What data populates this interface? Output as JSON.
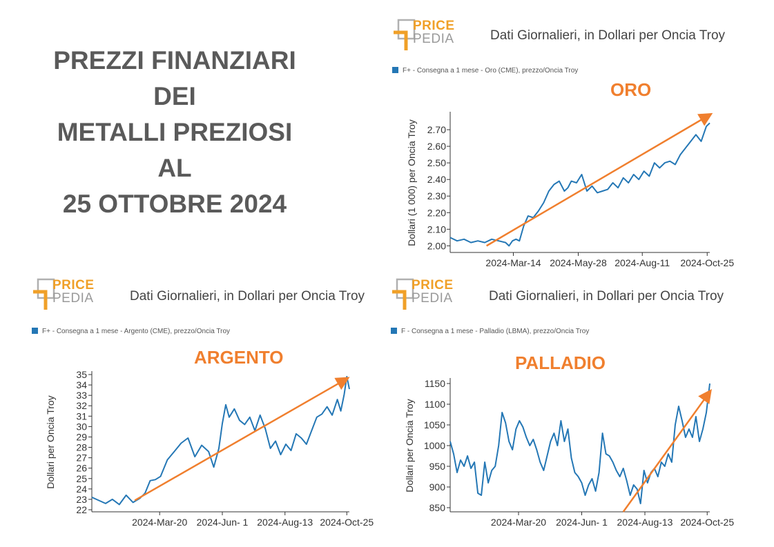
{
  "title_lines": [
    "PREZZI FINANZIARI",
    "DEI",
    "METALLI PREZIOSI",
    "AL",
    "25 OTTOBRE 2024"
  ],
  "logo": {
    "word1": "PRICE",
    "word2": "PEDIA"
  },
  "colors": {
    "series": "#2477b5",
    "arrow": "#f07f2e",
    "title": "#5a5a5a",
    "logo_accent": "#f0a028"
  },
  "chart_data": [
    {
      "type": "line",
      "title": "ORO",
      "subtitle": "Dati Giornalieri, in Dollari per Oncia Troy",
      "legend": "F+ - Consegna a 1 mese - Oro (CME), prezzo/Oncia Troy",
      "ylabel": "Dollari (1 000) per Oncia Troy",
      "xlabel": "",
      "xlim": [
        0,
        300
      ],
      "ylim": [
        1.96,
        2.8
      ],
      "yticks": [
        2.0,
        2.1,
        2.2,
        2.3,
        2.4,
        2.5,
        2.6,
        2.7
      ],
      "ytick_labels": [
        "2.00",
        "2.10",
        "2.20",
        "2.30",
        "2.40",
        "2.50",
        "2.60",
        "2.70"
      ],
      "xticks": [
        73,
        148,
        222,
        297
      ],
      "xtick_labels": [
        "2024-Mar-14",
        "2024-May-28",
        "2024-Aug-11",
        "2024-Oct-25"
      ],
      "series": [
        {
          "name": "F+ - Consegna a 1 mese - Oro (CME), prezzo/Oncia Troy",
          "x": [
            0,
            8,
            16,
            24,
            32,
            40,
            48,
            56,
            64,
            68,
            72,
            76,
            80,
            85,
            90,
            96,
            102,
            108,
            114,
            120,
            126,
            132,
            136,
            140,
            146,
            152,
            158,
            164,
            170,
            176,
            182,
            188,
            194,
            200,
            206,
            212,
            218,
            224,
            230,
            236,
            242,
            248,
            254,
            260,
            266,
            272,
            278,
            284,
            290,
            296,
            300
          ],
          "y": [
            2.05,
            2.03,
            2.04,
            2.02,
            2.03,
            2.02,
            2.04,
            2.03,
            2.02,
            2.0,
            2.03,
            2.04,
            2.03,
            2.12,
            2.18,
            2.17,
            2.21,
            2.26,
            2.33,
            2.37,
            2.39,
            2.33,
            2.35,
            2.39,
            2.38,
            2.43,
            2.33,
            2.36,
            2.32,
            2.33,
            2.34,
            2.38,
            2.35,
            2.41,
            2.38,
            2.43,
            2.4,
            2.45,
            2.42,
            2.5,
            2.47,
            2.5,
            2.51,
            2.49,
            2.55,
            2.59,
            2.63,
            2.67,
            2.63,
            2.72,
            2.74
          ]
        }
      ],
      "trend_arrow": {
        "x": [
          42,
          300
        ],
        "y": [
          2.0,
          2.79
        ]
      }
    },
    {
      "type": "line",
      "title": "ARGENTO",
      "subtitle": "Dati Giornalieri, in Dollari per Oncia Troy",
      "legend": "F+ - Consegna a 1 mese - Argento (CME), prezzo/Oncia Troy",
      "ylabel": "Dollari per Oncia Troy",
      "xlabel": "",
      "xlim": [
        0,
        300
      ],
      "ylim": [
        21.8,
        35.2
      ],
      "yticks": [
        22,
        23,
        24,
        25,
        26,
        27,
        28,
        29,
        30,
        31,
        32,
        33,
        34,
        35
      ],
      "ytick_labels": [
        "22",
        "23",
        "24",
        "25",
        "26",
        "27",
        "28",
        "29",
        "30",
        "31",
        "32",
        "33",
        "34",
        "35"
      ],
      "xticks": [
        79,
        152,
        225,
        297
      ],
      "xtick_labels": [
        "2024-Mar-20",
        "2024-Jun- 1",
        "2024-Aug-13",
        "2024-Oct-25"
      ],
      "series": [
        {
          "name": "F+ - Consegna a 1 mese - Argento (CME), prezzo/Oncia Troy",
          "x": [
            0,
            8,
            16,
            24,
            32,
            40,
            48,
            56,
            62,
            68,
            74,
            80,
            88,
            96,
            104,
            112,
            120,
            128,
            136,
            142,
            148,
            152,
            156,
            160,
            166,
            172,
            178,
            184,
            190,
            196,
            202,
            208,
            214,
            220,
            226,
            232,
            238,
            244,
            250,
            256,
            262,
            268,
            274,
            280,
            286,
            290,
            294,
            297,
            300
          ],
          "y": [
            23.2,
            22.9,
            22.6,
            23.0,
            22.5,
            23.4,
            22.7,
            23.1,
            23.6,
            24.8,
            24.9,
            25.2,
            26.8,
            27.6,
            28.4,
            28.9,
            27.1,
            28.2,
            27.6,
            26.1,
            27.9,
            30.3,
            32.1,
            30.9,
            31.7,
            30.6,
            30.2,
            30.9,
            29.6,
            31.1,
            29.8,
            27.9,
            28.6,
            27.3,
            28.3,
            27.7,
            29.3,
            28.9,
            28.3,
            29.6,
            30.9,
            31.2,
            31.9,
            31.1,
            32.6,
            31.5,
            33.1,
            34.8,
            33.6
          ]
        }
      ],
      "trend_arrow": {
        "x": [
          50,
          297
        ],
        "y": [
          22.9,
          34.6
        ]
      }
    },
    {
      "type": "line",
      "title": "PALLADIO",
      "subtitle": "Dati Giornalieri, in Dollari per Oncia Troy",
      "legend": "F - Consegna a 1 mese - Palladio (LBMA), prezzo/Oncia Troy",
      "ylabel": "Dollari per Oncia Troy",
      "xlabel": "",
      "xlim": [
        0,
        300
      ],
      "ylim": [
        840,
        1160
      ],
      "yticks": [
        850,
        900,
        950,
        1000,
        1050,
        1100,
        1150
      ],
      "ytick_labels": [
        "850",
        "900",
        "950",
        "1000",
        "1050",
        "1100",
        "1150"
      ],
      "xticks": [
        79,
        152,
        225,
        297
      ],
      "xtick_labels": [
        "2024-Mar-20",
        "2024-Jun- 1",
        "2024-Aug-13",
        "2024-Oct-25"
      ],
      "series": [
        {
          "name": "F - Consegna a 1 mese - Palladio (LBMA), prezzo/Oncia Troy",
          "x": [
            0,
            4,
            8,
            12,
            16,
            20,
            24,
            28,
            32,
            36,
            40,
            44,
            48,
            52,
            56,
            60,
            64,
            68,
            72,
            76,
            80,
            84,
            88,
            92,
            96,
            100,
            104,
            108,
            112,
            116,
            120,
            124,
            128,
            132,
            136,
            140,
            144,
            148,
            152,
            156,
            160,
            164,
            168,
            172,
            176,
            180,
            184,
            188,
            192,
            196,
            200,
            204,
            208,
            212,
            216,
            220,
            224,
            228,
            232,
            236,
            240,
            244,
            248,
            252,
            256,
            260,
            264,
            268,
            272,
            276,
            280,
            284,
            288,
            292,
            296,
            300
          ],
          "y": [
            1010,
            980,
            935,
            965,
            950,
            975,
            945,
            960,
            885,
            880,
            960,
            910,
            940,
            950,
            1000,
            1080,
            1055,
            1010,
            990,
            1040,
            1060,
            1045,
            1020,
            1000,
            1015,
            990,
            960,
            940,
            975,
            1010,
            1030,
            1000,
            1060,
            1010,
            1040,
            970,
            935,
            925,
            910,
            880,
            905,
            920,
            890,
            935,
            1030,
            980,
            975,
            960,
            940,
            925,
            945,
            915,
            880,
            905,
            895,
            860,
            940,
            910,
            935,
            945,
            925,
            960,
            950,
            980,
            960,
            1050,
            1095,
            1060,
            1020,
            1040,
            1020,
            1070,
            1010,
            1040,
            1080,
            1150
          ]
        }
      ],
      "trend_arrow": {
        "x": [
          200,
          300
        ],
        "y": [
          840,
          1130
        ]
      }
    }
  ]
}
